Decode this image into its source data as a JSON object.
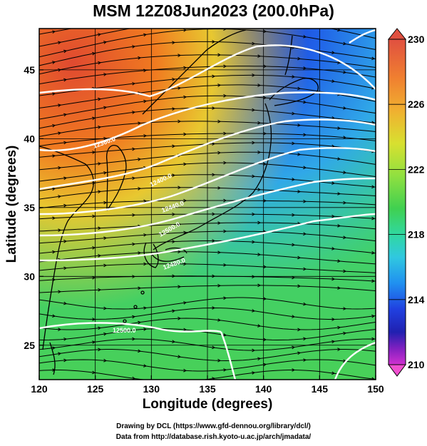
{
  "title": "MSM 12Z08Jun2023 (200.0hPa)",
  "xlabel": "Longitude (degrees)",
  "ylabel": "Latitude  (degrees)",
  "x_ticks": [
    "120",
    "125",
    "130",
    "135",
    "140",
    "145",
    "150"
  ],
  "y_ticks": [
    "25",
    "30",
    "35",
    "40",
    "45"
  ],
  "colorbar": {
    "labels": [
      "230",
      "226",
      "222",
      "218",
      "214",
      "210"
    ],
    "colors": [
      "#e05040",
      "#f08030",
      "#f0b030",
      "#d8e030",
      "#90e040",
      "#40d050",
      "#30d8a0",
      "#30c8e0",
      "#2090f0",
      "#2040e0",
      "#2020b0",
      "#8020c0",
      "#d030d0",
      "#f050d0"
    ]
  },
  "contour_labels": [
    "12360.0",
    "12400.0",
    "12440.0",
    "12480.0",
    "12500.0"
  ],
  "credits": {
    "line1": "Drawing by DCL (https://www.gfd-dennou.org/library/dcl/)",
    "line2": "Data from http://database.rish.kyoto-u.ac.jp/arch/jmadata/"
  }
}
